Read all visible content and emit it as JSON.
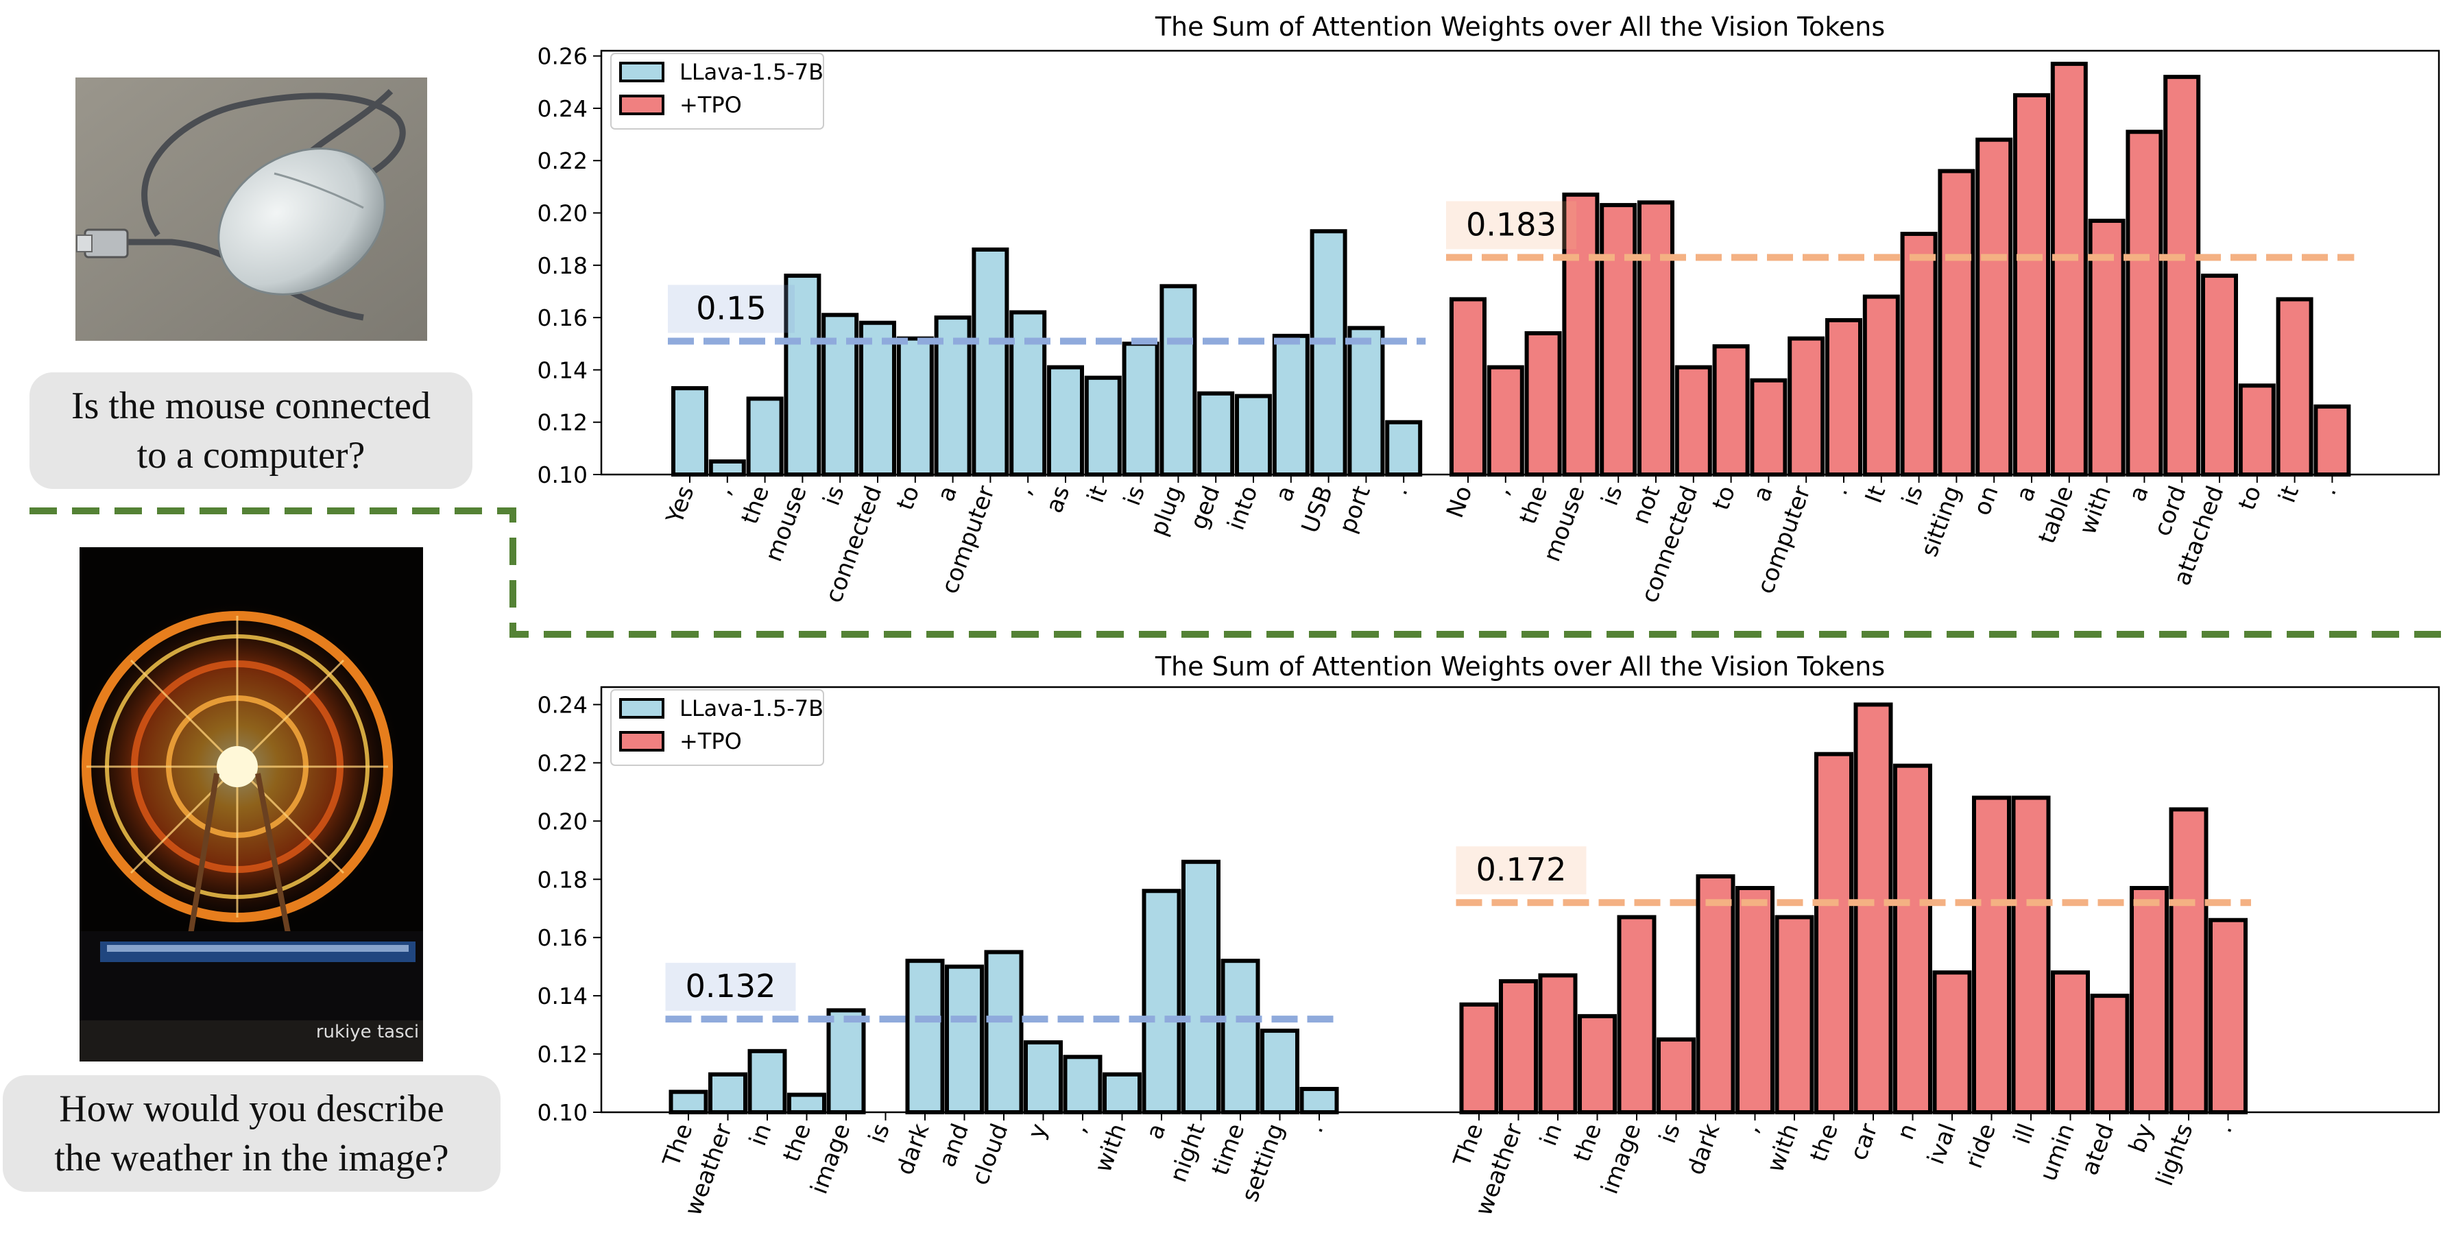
{
  "examples": [
    {
      "question_lines": [
        "Is the mouse connected",
        "to a computer?"
      ],
      "image_subject": "computer-mouse"
    },
    {
      "question_lines": [
        "How would you describe",
        "the weather in the image?"
      ],
      "image_subject": "ferris-wheel-night",
      "image_watermark": "rukiye tasci"
    }
  ],
  "colors": {
    "base_bar": "#add8e6",
    "tpo_bar": "#f08080",
    "base_mean": "#8faadc",
    "tpo_mean": "#f4b183",
    "separator": "#548235"
  },
  "chart_data": [
    {
      "type": "bar",
      "title": "The Sum of Attention Weights over All the Vision Tokens",
      "xlabel": "",
      "ylabel": "",
      "ylim": [
        0.1,
        0.262
      ],
      "yticks": [
        "0.10",
        "0.12",
        "0.14",
        "0.16",
        "0.18",
        "0.20",
        "0.22",
        "0.24",
        "0.26"
      ],
      "legend": {
        "position": "top-left",
        "entries": [
          "LLava-1.5-7B",
          "+TPO"
        ]
      },
      "series": [
        {
          "name": "LLava-1.5-7B",
          "categories": [
            "Yes",
            ",",
            "the",
            "mouse",
            "is",
            "connected",
            "to",
            "a",
            "computer",
            ",",
            "as",
            "it",
            "is",
            "plug",
            "ged",
            "into",
            "a",
            "USB",
            "port",
            "."
          ],
          "values": [
            0.133,
            0.105,
            0.129,
            0.176,
            0.161,
            0.158,
            0.152,
            0.16,
            0.186,
            0.162,
            0.141,
            0.137,
            0.15,
            0.172,
            0.131,
            0.13,
            0.153,
            0.193,
            0.156,
            0.12
          ],
          "mean": 0.151,
          "mean_label": "0.15"
        },
        {
          "name": "+TPO",
          "categories": [
            "No",
            ",",
            "the",
            "mouse",
            "is",
            "not",
            "connected",
            "to",
            "a",
            "computer",
            ".",
            "It",
            "is",
            "sitting",
            "on",
            "a",
            "table",
            "with",
            "a",
            "cord",
            "attached",
            "to",
            "it",
            "."
          ],
          "values": [
            0.167,
            0.141,
            0.154,
            0.207,
            0.203,
            0.204,
            0.141,
            0.149,
            0.136,
            0.152,
            0.159,
            0.168,
            0.192,
            0.216,
            0.228,
            0.245,
            0.257,
            0.197,
            0.231,
            0.252,
            0.176,
            0.134,
            0.167,
            0.126
          ],
          "mean": 0.183,
          "mean_label": "0.183"
        }
      ]
    },
    {
      "type": "bar",
      "title": "The Sum of Attention Weights over All the Vision Tokens",
      "xlabel": "",
      "ylabel": "",
      "ylim": [
        0.1,
        0.246
      ],
      "yticks": [
        "0.10",
        "0.12",
        "0.14",
        "0.16",
        "0.18",
        "0.20",
        "0.22",
        "0.24"
      ],
      "legend": {
        "position": "top-left",
        "entries": [
          "LLava-1.5-7B",
          "+TPO"
        ]
      },
      "series": [
        {
          "name": "LLava-1.5-7B",
          "categories": [
            "The",
            "weather",
            "in",
            "the",
            "image",
            "is",
            "dark",
            "and",
            "cloud",
            "y",
            ",",
            "with",
            "a",
            "night",
            "time",
            "setting",
            "."
          ],
          "values": [
            0.107,
            0.113,
            0.121,
            0.106,
            0.135,
            0.1,
            0.152,
            0.15,
            0.155,
            0.124,
            0.119,
            0.113,
            0.176,
            0.186,
            0.152,
            0.128,
            0.108
          ],
          "mean": 0.132,
          "mean_label": "0.132"
        },
        {
          "name": "+TPO",
          "categories": [
            "The",
            "weather",
            "in",
            "the",
            "image",
            "is",
            "dark",
            ",",
            "with",
            "the",
            "car",
            "n",
            "ival",
            "ride",
            "ill",
            "umin",
            "ated",
            "by",
            "lights",
            "."
          ],
          "values": [
            0.137,
            0.145,
            0.147,
            0.133,
            0.167,
            0.125,
            0.181,
            0.177,
            0.167,
            0.223,
            0.24,
            0.219,
            0.148,
            0.208,
            0.208,
            0.148,
            0.14,
            0.177,
            0.204,
            0.166
          ],
          "mean": 0.172,
          "mean_label": "0.172"
        }
      ]
    }
  ]
}
